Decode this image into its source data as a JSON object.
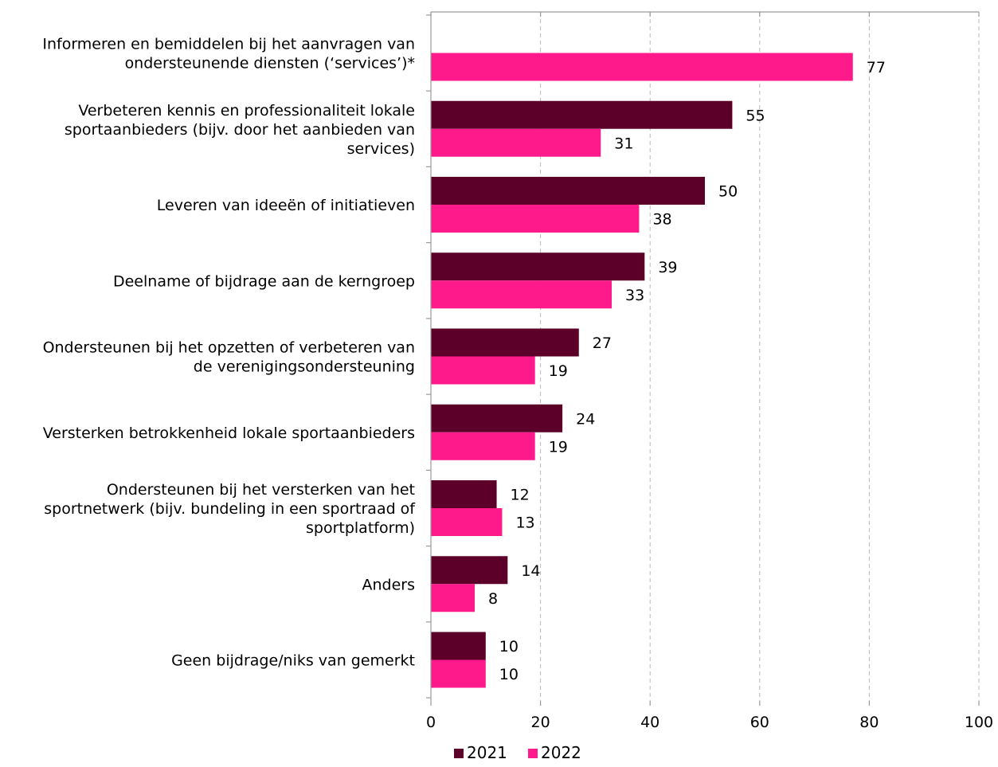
{
  "chart_data": {
    "type": "bar",
    "orientation": "horizontal",
    "categories": [
      [
        "Informeren en bemiddelen bij het aanvragen van",
        "ondersteunende diensten (‘services’)*"
      ],
      [
        "Verbeteren kennis en professionaliteit lokale",
        "sportaanbieders (bijv. door het aanbieden van",
        "services)"
      ],
      [
        "Leveren van ideeën of initiatieven"
      ],
      [
        "Deelname of bijdrage aan de kerngroep"
      ],
      [
        "Ondersteunen bij het opzetten of verbeteren van",
        "de verenigingsondersteuning"
      ],
      [
        "Versterken betrokkenheid lokale sportaanbieders"
      ],
      [
        "Ondersteunen bij het versterken van het",
        "sportnetwerk (bijv. bundeling in een sportraad of",
        "sportplatform)"
      ],
      [
        "Anders"
      ],
      [
        "Geen bijdrage/niks van gemerkt"
      ]
    ],
    "series": [
      {
        "name": "2021",
        "color": "#5c0029",
        "values": [
          null,
          55,
          50,
          39,
          27,
          24,
          12,
          14,
          10
        ]
      },
      {
        "name": "2022",
        "color": "#ff1a8c",
        "values": [
          77,
          31,
          38,
          33,
          19,
          19,
          13,
          8,
          10
        ]
      }
    ],
    "xlim": [
      0,
      100
    ],
    "xticks": [
      0,
      20,
      40,
      60,
      80,
      100
    ],
    "grid": true,
    "legend": "bottom-center"
  }
}
